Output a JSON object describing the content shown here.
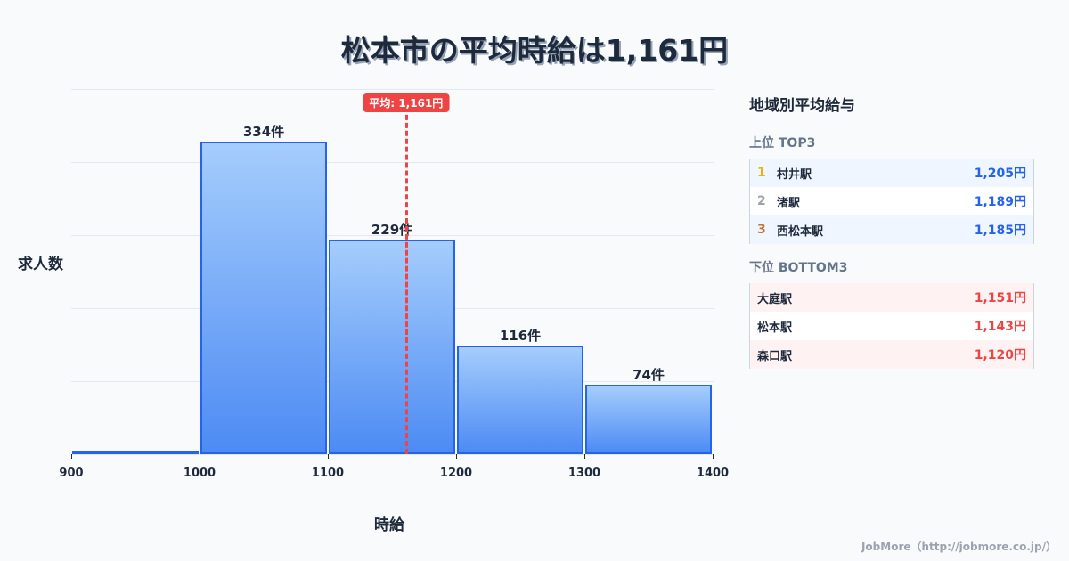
{
  "title": "松本市の平均時給は1,161円",
  "chart_data": {
    "type": "bar",
    "title": "松本市の平均時給は1,161円",
    "xlabel": "時給",
    "ylabel": "求人数",
    "categories": [
      "900-1000",
      "1000-1100",
      "1100-1200",
      "1200-1300",
      "1300-1400"
    ],
    "bin_edges": [
      900,
      1000,
      1100,
      1200,
      1300,
      1400
    ],
    "values": [
      3,
      334,
      229,
      116,
      74
    ],
    "value_labels": [
      "",
      "334件",
      "229件",
      "116件",
      "74件"
    ],
    "x_ticks": [
      "900",
      "1000",
      "1100",
      "1200",
      "1300",
      "1400"
    ],
    "ylim": [
      0,
      390
    ],
    "grid": true,
    "average": {
      "value": 1161,
      "label": "平均: 1,161円",
      "color": "#ef4444"
    },
    "bar_color": "#3b82f6"
  },
  "panel": {
    "title": "地域別平均給与",
    "top_title": "上位 TOP3",
    "top": [
      {
        "rank": "1",
        "name": "村井駅",
        "value": "1,205円",
        "rank_color": "#eab308"
      },
      {
        "rank": "2",
        "name": "渚駅",
        "value": "1,189円",
        "rank_color": "#9ca3af"
      },
      {
        "rank": "3",
        "name": "西松本駅",
        "value": "1,185円",
        "rank_color": "#c2712e"
      }
    ],
    "bottom_title": "下位 BOTTOM3",
    "bottom": [
      {
        "name": "大庭駅",
        "value": "1,151円"
      },
      {
        "name": "松本駅",
        "value": "1,143円"
      },
      {
        "name": "森口駅",
        "value": "1,120円"
      }
    ]
  },
  "footer": "JobMore（http://jobmore.co.jp/）"
}
